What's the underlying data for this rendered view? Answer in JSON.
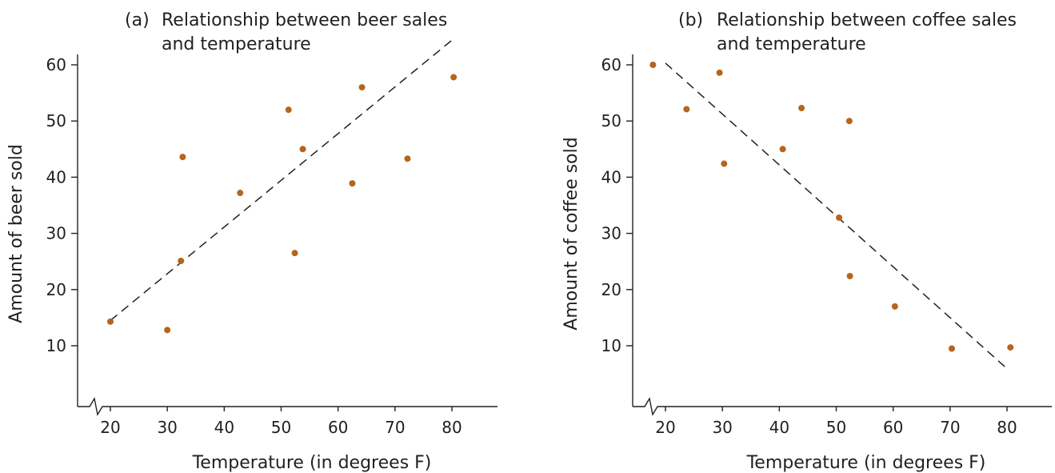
{
  "chart_data": [
    {
      "type": "scatter",
      "panel_label": "(a)",
      "title_lines": [
        "Relationship between beer sales",
        "and temperature"
      ],
      "xlabel": "Temperature (in degrees F)",
      "ylabel": "Amount of beer sold",
      "xlim": [
        15,
        88
      ],
      "ylim": [
        0,
        62
      ],
      "xticks": [
        "20",
        "30",
        "40",
        "50",
        "60",
        "70",
        "80"
      ],
      "yticks": [
        "10",
        "20",
        "30",
        "40",
        "50",
        "60"
      ],
      "axis_break": "x",
      "grid": false,
      "points": [
        {
          "x": 20,
          "y": 14.3
        },
        {
          "x": 30,
          "y": 12.8
        },
        {
          "x": 32.4,
          "y": 25.1
        },
        {
          "x": 32.7,
          "y": 43.6
        },
        {
          "x": 42.8,
          "y": 37.2
        },
        {
          "x": 51.3,
          "y": 52
        },
        {
          "x": 52.4,
          "y": 26.5
        },
        {
          "x": 53.8,
          "y": 45
        },
        {
          "x": 62.5,
          "y": 38.9
        },
        {
          "x": 64.2,
          "y": 56
        },
        {
          "x": 72.2,
          "y": 43.3
        },
        {
          "x": 80.3,
          "y": 57.8
        }
      ],
      "trend_line": {
        "x": [
          20,
          80.5
        ],
        "y": [
          14.5,
          64.8
        ],
        "style": "dashed"
      },
      "point_color": "#b5651d"
    },
    {
      "type": "scatter",
      "panel_label": "(b)",
      "title_lines": [
        "Relationship between coffee sales",
        "and temperature"
      ],
      "xlabel": "Temperature (in degrees F)",
      "ylabel": "Amount of coffee sold",
      "xlim": [
        15,
        88
      ],
      "ylim": [
        0,
        62
      ],
      "xticks": [
        "20",
        "30",
        "40",
        "50",
        "60",
        "70",
        "80"
      ],
      "yticks": [
        "10",
        "20",
        "30",
        "40",
        "50",
        "60"
      ],
      "axis_break": "x",
      "grid": false,
      "points": [
        {
          "x": 17.8,
          "y": 60
        },
        {
          "x": 23.7,
          "y": 52.1
        },
        {
          "x": 29.5,
          "y": 58.6
        },
        {
          "x": 30.3,
          "y": 42.4
        },
        {
          "x": 40.6,
          "y": 45
        },
        {
          "x": 43.9,
          "y": 52.3
        },
        {
          "x": 50.5,
          "y": 32.8
        },
        {
          "x": 52.3,
          "y": 50
        },
        {
          "x": 52.4,
          "y": 22.4
        },
        {
          "x": 60.3,
          "y": 17
        },
        {
          "x": 70.3,
          "y": 9.5
        },
        {
          "x": 80.6,
          "y": 9.7
        }
      ],
      "trend_line": {
        "x": [
          20,
          79.7
        ],
        "y": [
          60.3,
          6.2
        ],
        "style": "dashed"
      },
      "point_color": "#b5651d"
    }
  ]
}
